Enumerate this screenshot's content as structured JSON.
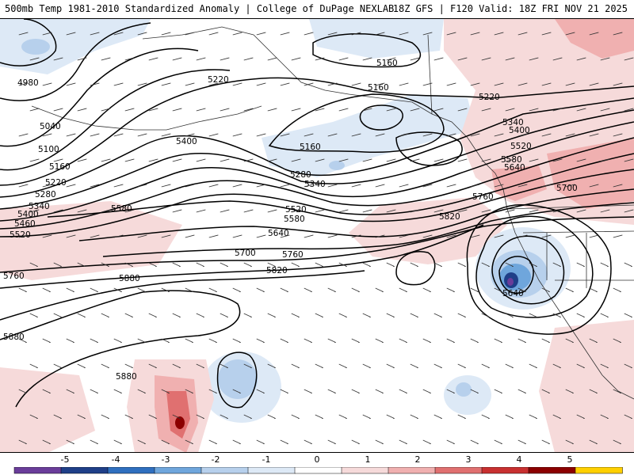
{
  "header": {
    "left_title": "500mb Temp 1981-2010 Standardized Anomaly | College of DuPage NEXLAB",
    "right_title": "18Z GFS | F120 Valid: 18Z FRI NOV 21 2025"
  },
  "colors": {
    "contour": "#000000",
    "land_outline": "#333333",
    "anomaly_scale": [
      "#6a3d9a",
      "#1f3f88",
      "#2f6fbf",
      "#6fa6dc",
      "#b7d0ec",
      "#dde9f6",
      "#ffffff",
      "#f6dada",
      "#f0b0b0",
      "#e07070",
      "#c83030",
      "#8b0000",
      "#ffd000"
    ]
  },
  "colorbar": {
    "ticks": [
      "-5",
      "-4",
      "-3",
      "-2",
      "-1",
      "0",
      "1",
      "2",
      "3",
      "4",
      "5"
    ]
  },
  "contour_labels": [
    {
      "id": "lbl-4980",
      "text": "4980"
    },
    {
      "id": "lbl-5040",
      "text": "5040"
    },
    {
      "id": "lbl-5100",
      "text": "5100"
    },
    {
      "id": "lbl-5160-w",
      "text": "5160"
    },
    {
      "id": "lbl-5220-w",
      "text": "5220"
    },
    {
      "id": "lbl-5280-w",
      "text": "5280"
    },
    {
      "id": "lbl-5340-w",
      "text": "5340"
    },
    {
      "id": "lbl-5400-w",
      "text": "5400"
    },
    {
      "id": "lbl-5460-w",
      "text": "5460"
    },
    {
      "id": "lbl-5520-w",
      "text": "5520"
    },
    {
      "id": "lbl-5760-w",
      "text": "5760"
    },
    {
      "id": "lbl-5880-w",
      "text": "5880"
    },
    {
      "id": "lbl-5220-c",
      "text": "5220"
    },
    {
      "id": "lbl-5400-c",
      "text": "5400"
    },
    {
      "id": "lbl-5580-c",
      "text": "5580"
    },
    {
      "id": "lbl-5880-c",
      "text": "5880"
    },
    {
      "id": "lbl-5880-s",
      "text": "5880"
    },
    {
      "id": "lbl-5160-n",
      "text": "5160"
    },
    {
      "id": "lbl-5160-gulf",
      "text": "5160"
    },
    {
      "id": "lbl-5160-low",
      "text": "5160"
    },
    {
      "id": "lbl-5280-c",
      "text": "5280"
    },
    {
      "id": "lbl-5340-c",
      "text": "5340"
    },
    {
      "id": "lbl-5520-c",
      "text": "5520"
    },
    {
      "id": "lbl-5580-c2",
      "text": "5580"
    },
    {
      "id": "lbl-5640-c",
      "text": "5640"
    },
    {
      "id": "lbl-5700-c",
      "text": "5700"
    },
    {
      "id": "lbl-5760-c",
      "text": "5760"
    },
    {
      "id": "lbl-5820-c",
      "text": "5820"
    },
    {
      "id": "lbl-5220-e",
      "text": "5220"
    },
    {
      "id": "lbl-5340-e",
      "text": "5340"
    },
    {
      "id": "lbl-5400-e",
      "text": "5400"
    },
    {
      "id": "lbl-5520-e",
      "text": "5520"
    },
    {
      "id": "lbl-5580-e",
      "text": "5580"
    },
    {
      "id": "lbl-5640-e",
      "text": "5640"
    },
    {
      "id": "lbl-5700-e",
      "text": "5700"
    },
    {
      "id": "lbl-5760-e",
      "text": "5760"
    },
    {
      "id": "lbl-5820-e",
      "text": "5820"
    },
    {
      "id": "lbl-5640-low",
      "text": "5640"
    }
  ]
}
